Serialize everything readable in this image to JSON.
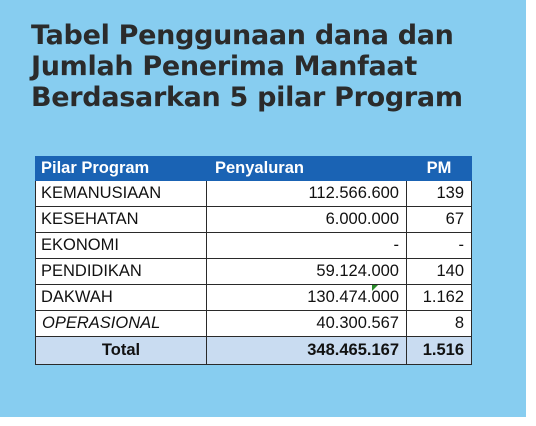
{
  "title": {
    "line1": "Tabel  Penggunaan dana dan",
    "line2": "Jumlah Penerima Manfaat",
    "line3": "Berdasarkan 5 pilar Program"
  },
  "table": {
    "headers": {
      "pilar": "Pilar Program",
      "penyaluran": "Penyaluran",
      "pm": "PM"
    },
    "rows": [
      {
        "pilar": "KEMANUSIAAN",
        "penyaluran": "112.566.600",
        "pm": "139"
      },
      {
        "pilar": "KESEHATAN",
        "penyaluran": "6.000.000",
        "pm": "67"
      },
      {
        "pilar": "EKONOMI",
        "penyaluran": "-",
        "pm": "-"
      },
      {
        "pilar": "PENDIDIKAN",
        "penyaluran": "59.124.000",
        "pm": "140"
      },
      {
        "pilar": "DAKWAH",
        "penyaluran": "130.474.000",
        "pm": "1.162"
      },
      {
        "pilar": "OPERASIONAL",
        "penyaluran": "40.300.567",
        "pm": "8"
      }
    ],
    "total": {
      "label": "Total",
      "penyaluran": "348.465.167",
      "pm": "1.516"
    }
  },
  "colors": {
    "background": "#87cdf0",
    "header": "#1a63b4",
    "total_row": "#c9dcf1",
    "title_text": "#2b2b2b"
  }
}
